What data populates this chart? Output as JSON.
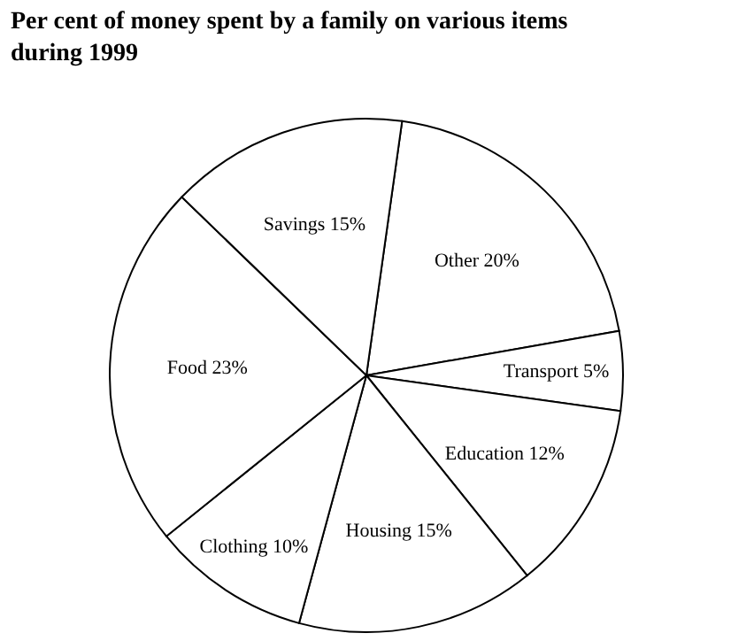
{
  "chart_data": {
    "type": "pie",
    "title": "Per cent of money spent by a family on various items during 1999",
    "categories": [
      "Other",
      "Transport",
      "Education",
      "Housing",
      "Clothing",
      "Food",
      "Savings"
    ],
    "values": [
      20,
      5,
      12,
      15,
      10,
      23,
      15
    ],
    "value_labels": [
      "20%",
      "5%",
      "12%",
      "15%",
      "10%",
      "23%",
      "15%"
    ],
    "colors": [
      "#ffffff",
      "#ffffff",
      "#ffffff",
      "#ffffff",
      "#ffffff",
      "#ffffff",
      "#ffffff"
    ],
    "legend": false
  }
}
